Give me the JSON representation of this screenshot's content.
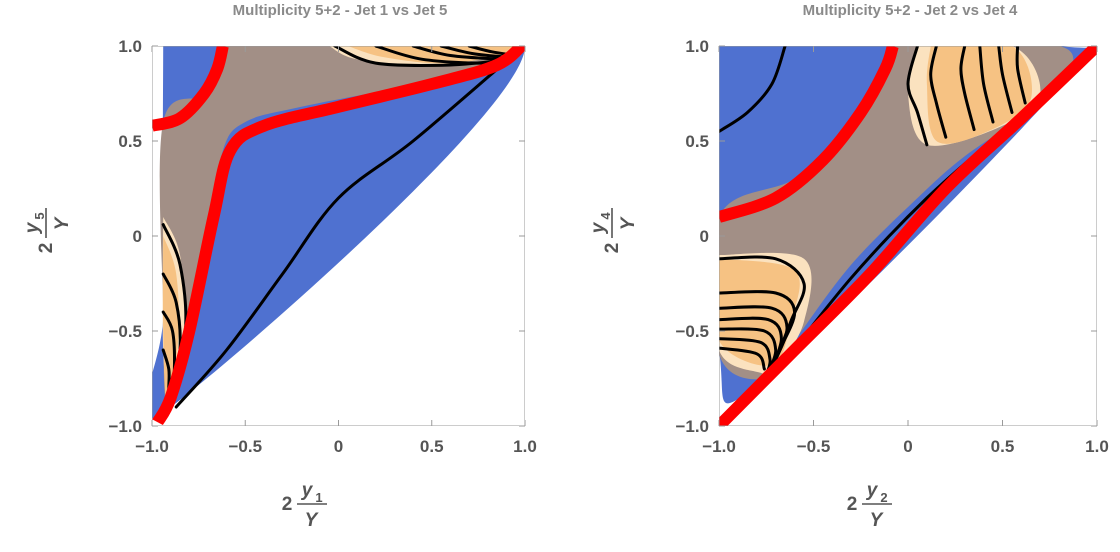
{
  "chart_data": [
    {
      "type": "contour",
      "title": "Multiplicity 5+2 - Jet 1 vs Jet 5",
      "xlabel": {
        "factor": "2",
        "numerator": "y",
        "subscript": "1",
        "denominator": "Y"
      },
      "ylabel": {
        "factor": "2",
        "numerator": "y",
        "subscript": "5",
        "denominator": "Y"
      },
      "xlim": [
        -1.0,
        1.0
      ],
      "ylim": [
        -1.0,
        1.0
      ],
      "xticks": [
        {
          "v": -1.0,
          "label": "−1.0"
        },
        {
          "v": -0.5,
          "label": "−0.5"
        },
        {
          "v": 0,
          "label": "0"
        },
        {
          "v": 0.5,
          "label": "0.5"
        },
        {
          "v": 1.0,
          "label": "1.0"
        }
      ],
      "yticks": [
        {
          "v": -1.0,
          "label": "−1.0"
        },
        {
          "v": -0.5,
          "label": "−0.5"
        },
        {
          "v": 0,
          "label": "0"
        },
        {
          "v": 0.5,
          "label": "0.5"
        },
        {
          "v": 1.0,
          "label": "1.0"
        }
      ],
      "colors": {
        "blue": "#4f71d0",
        "taupe": "#a28f86",
        "orange": "#f6c283",
        "light": "#fbe2bf",
        "red": "#ff0000",
        "contour": "#000000"
      },
      "regions": [
        {
          "fill": "blue",
          "points": [
            [
              -0.94,
              1.0
            ],
            [
              1.0,
              1.0
            ],
            [
              -0.9,
              -0.9
            ],
            [
              -0.94,
              -0.4
            ]
          ]
        },
        {
          "fill": "taupe",
          "points": [
            [
              -0.62,
              1.0
            ],
            [
              1.0,
              1.0
            ],
            [
              1.0,
              0.98
            ],
            [
              0.5,
              0.82
            ],
            [
              -0.2,
              0.68
            ],
            [
              -0.5,
              0.6
            ],
            [
              -0.62,
              0.45
            ],
            [
              -0.7,
              0.0
            ],
            [
              -0.82,
              -0.6
            ],
            [
              -0.92,
              -0.9
            ],
            [
              -0.94,
              -0.4
            ],
            [
              -0.94,
              0.6
            ],
            [
              -0.7,
              0.75
            ]
          ]
        },
        {
          "fill": "light",
          "points": [
            [
              -0.05,
              1.0
            ],
            [
              0.1,
              0.93
            ],
            [
              0.5,
              0.9
            ],
            [
              0.95,
              0.96
            ],
            [
              1.0,
              1.0
            ]
          ]
        },
        {
          "fill": "orange",
          "points": [
            [
              0.05,
              1.0
            ],
            [
              0.25,
              0.94
            ],
            [
              0.6,
              0.91
            ],
            [
              1.0,
              0.98
            ],
            [
              1.0,
              1.0
            ]
          ]
        },
        {
          "fill": "light",
          "points": [
            [
              -0.94,
              0.1
            ],
            [
              -0.85,
              -0.1
            ],
            [
              -0.83,
              -0.5
            ],
            [
              -0.9,
              -0.9
            ],
            [
              -0.94,
              -0.6
            ]
          ]
        },
        {
          "fill": "orange",
          "points": [
            [
              -0.94,
              0.0
            ],
            [
              -0.87,
              -0.2
            ],
            [
              -0.86,
              -0.55
            ],
            [
              -0.92,
              -0.88
            ],
            [
              -0.94,
              -0.5
            ]
          ]
        }
      ],
      "contours": [
        [
          [
            -0.94,
            0.06
          ],
          [
            -0.85,
            -0.15
          ],
          [
            -0.82,
            -0.5
          ],
          [
            -0.9,
            -0.88
          ]
        ],
        [
          [
            -0.94,
            -0.2
          ],
          [
            -0.87,
            -0.35
          ],
          [
            -0.85,
            -0.6
          ],
          [
            -0.9,
            -0.89
          ]
        ],
        [
          [
            -0.94,
            -0.4
          ],
          [
            -0.89,
            -0.5
          ],
          [
            -0.88,
            -0.7
          ],
          [
            -0.9,
            -0.89
          ]
        ],
        [
          [
            -0.94,
            -0.6
          ],
          [
            -0.91,
            -0.7
          ],
          [
            -0.91,
            -0.8
          ],
          [
            -0.91,
            -0.9
          ]
        ],
        [
          [
            -0.02,
            1.0
          ],
          [
            0.2,
            0.91
          ],
          [
            0.6,
            0.9
          ],
          [
            0.92,
            0.93
          ]
        ],
        [
          [
            0.2,
            1.0
          ],
          [
            0.45,
            0.93
          ],
          [
            0.8,
            0.91
          ],
          [
            0.95,
            0.94
          ]
        ],
        [
          [
            0.4,
            1.0
          ],
          [
            0.6,
            0.95
          ],
          [
            0.88,
            0.93
          ]
        ],
        [
          [
            0.55,
            1.0
          ],
          [
            0.72,
            0.96
          ],
          [
            0.92,
            0.94
          ]
        ],
        [
          [
            0.7,
            1.0
          ],
          [
            0.82,
            0.97
          ],
          [
            0.95,
            0.95
          ]
        ],
        [
          [
            -0.87,
            -0.9
          ],
          [
            -0.6,
            -0.6
          ],
          [
            -0.3,
            -0.2
          ],
          [
            0.0,
            0.2
          ],
          [
            0.4,
            0.5
          ],
          [
            0.9,
            0.92
          ]
        ]
      ],
      "red_curves": [
        [
          [
            -1.0,
            0.58
          ],
          [
            -0.85,
            0.62
          ],
          [
            -0.72,
            0.75
          ],
          [
            -0.65,
            0.88
          ],
          [
            -0.62,
            1.0
          ]
        ],
        [
          [
            -0.97,
            -0.98
          ],
          [
            -0.9,
            -0.85
          ],
          [
            -0.8,
            -0.5
          ],
          [
            -0.67,
            0.1
          ],
          [
            -0.58,
            0.45
          ],
          [
            -0.4,
            0.58
          ],
          [
            0.0,
            0.68
          ],
          [
            0.5,
            0.8
          ],
          [
            0.85,
            0.9
          ],
          [
            1.0,
            1.02
          ]
        ]
      ]
    },
    {
      "type": "contour",
      "title": "Multiplicity 5+2 - Jet 2 vs Jet 4",
      "xlabel": {
        "factor": "2",
        "numerator": "y",
        "subscript": "2",
        "denominator": "Y"
      },
      "ylabel": {
        "factor": "2",
        "numerator": "y",
        "subscript": "4",
        "denominator": "Y"
      },
      "xlim": [
        -1.0,
        1.0
      ],
      "ylim": [
        -1.0,
        1.0
      ],
      "xticks": [
        {
          "v": -1.0,
          "label": "−1.0"
        },
        {
          "v": -0.5,
          "label": "−0.5"
        },
        {
          "v": 0,
          "label": "0"
        },
        {
          "v": 0.5,
          "label": "0.5"
        },
        {
          "v": 1.0,
          "label": "1.0"
        }
      ],
      "yticks": [
        {
          "v": -1.0,
          "label": "−1.0"
        },
        {
          "v": -0.5,
          "label": "−0.5"
        },
        {
          "v": 0,
          "label": "0"
        },
        {
          "v": 0.5,
          "label": "0.5"
        },
        {
          "v": 1.0,
          "label": "1.0"
        }
      ],
      "colors": {
        "blue": "#4f71d0",
        "taupe": "#a28f86",
        "orange": "#f6c283",
        "light": "#fbe2bf",
        "red": "#ff0000",
        "contour": "#000000"
      },
      "regions": [
        {
          "fill": "blue",
          "points": [
            [
              -1.0,
              1.0
            ],
            [
              0.8,
              1.0
            ],
            [
              0.8,
              0.78
            ],
            [
              -0.75,
              -0.75
            ],
            [
              -1.0,
              -0.6
            ]
          ]
        },
        {
          "fill": "taupe",
          "points": [
            [
              -0.1,
              1.0
            ],
            [
              0.8,
              1.0
            ],
            [
              0.8,
              0.78
            ],
            [
              0.6,
              0.62
            ],
            [
              0.3,
              0.42
            ],
            [
              0.05,
              0.2
            ],
            [
              -0.3,
              -0.15
            ],
            [
              -0.6,
              -0.55
            ],
            [
              -0.75,
              -0.75
            ],
            [
              -1.0,
              -0.62
            ],
            [
              -1.0,
              0.1
            ],
            [
              -0.6,
              0.3
            ],
            [
              -0.3,
              0.55
            ],
            [
              -0.15,
              0.8
            ]
          ]
        },
        {
          "fill": "light",
          "points": [
            [
              0.05,
              1.0
            ],
            [
              0.55,
              1.0
            ],
            [
              0.7,
              0.75
            ],
            [
              0.5,
              0.58
            ],
            [
              0.1,
              0.48
            ],
            [
              0.0,
              0.75
            ]
          ]
        },
        {
          "fill": "orange",
          "points": [
            [
              0.12,
              1.0
            ],
            [
              0.55,
              1.0
            ],
            [
              0.65,
              0.72
            ],
            [
              0.42,
              0.55
            ],
            [
              0.15,
              0.5
            ],
            [
              0.1,
              0.8
            ]
          ]
        },
        {
          "fill": "light",
          "points": [
            [
              -1.0,
              -0.1
            ],
            [
              -0.55,
              -0.12
            ],
            [
              -0.55,
              -0.45
            ],
            [
              -0.7,
              -0.7
            ],
            [
              -0.78,
              -0.72
            ],
            [
              -1.0,
              -0.6
            ]
          ]
        },
        {
          "fill": "orange",
          "points": [
            [
              -1.0,
              -0.12
            ],
            [
              -0.6,
              -0.18
            ],
            [
              -0.62,
              -0.45
            ],
            [
              -0.72,
              -0.68
            ],
            [
              -1.0,
              -0.55
            ]
          ]
        }
      ],
      "contours": [
        [
          [
            -1.0,
            0.55
          ],
          [
            -0.85,
            0.65
          ],
          [
            -0.72,
            0.8
          ],
          [
            -0.65,
            1.0
          ]
        ],
        [
          [
            -1.0,
            -0.12
          ],
          [
            -0.7,
            -0.12
          ],
          [
            -0.55,
            -0.25
          ],
          [
            -0.62,
            -0.45
          ],
          [
            -0.72,
            -0.7
          ]
        ],
        [
          [
            -1.0,
            -0.3
          ],
          [
            -0.7,
            -0.3
          ],
          [
            -0.6,
            -0.4
          ],
          [
            -0.68,
            -0.6
          ],
          [
            -0.74,
            -0.72
          ]
        ],
        [
          [
            -1.0,
            -0.38
          ],
          [
            -0.72,
            -0.38
          ],
          [
            -0.64,
            -0.48
          ],
          [
            -0.7,
            -0.65
          ],
          [
            -0.75,
            -0.73
          ]
        ],
        [
          [
            -1.0,
            -0.44
          ],
          [
            -0.74,
            -0.44
          ],
          [
            -0.67,
            -0.54
          ],
          [
            -0.73,
            -0.72
          ]
        ],
        [
          [
            -1.0,
            -0.49
          ],
          [
            -0.76,
            -0.5
          ],
          [
            -0.7,
            -0.6
          ],
          [
            -0.74,
            -0.72
          ]
        ],
        [
          [
            -1.0,
            -0.54
          ],
          [
            -0.78,
            -0.56
          ],
          [
            -0.73,
            -0.65
          ],
          [
            -0.75,
            -0.73
          ]
        ],
        [
          [
            -1.0,
            -0.59
          ],
          [
            -0.8,
            -0.62
          ],
          [
            -0.76,
            -0.7
          ]
        ],
        [
          [
            0.1,
            0.48
          ],
          [
            0.05,
            0.65
          ],
          [
            0.0,
            0.8
          ],
          [
            0.05,
            1.0
          ]
        ],
        [
          [
            0.2,
            0.52
          ],
          [
            0.15,
            0.7
          ],
          [
            0.12,
            0.85
          ],
          [
            0.15,
            1.0
          ]
        ],
        [
          [
            0.35,
            0.56
          ],
          [
            0.3,
            0.75
          ],
          [
            0.28,
            0.88
          ],
          [
            0.3,
            1.0
          ]
        ],
        [
          [
            0.45,
            0.6
          ],
          [
            0.4,
            0.8
          ],
          [
            0.38,
            1.0
          ]
        ],
        [
          [
            0.55,
            0.65
          ],
          [
            0.5,
            0.85
          ],
          [
            0.48,
            1.0
          ]
        ],
        [
          [
            0.62,
            0.7
          ],
          [
            0.58,
            0.88
          ],
          [
            0.58,
            1.0
          ]
        ],
        [
          [
            -0.7,
            -0.72
          ],
          [
            -0.3,
            -0.22
          ],
          [
            0.1,
            0.2
          ],
          [
            0.5,
            0.55
          ],
          [
            0.78,
            0.78
          ]
        ]
      ],
      "red_curves": [
        [
          [
            -1.0,
            0.1
          ],
          [
            -0.7,
            0.2
          ],
          [
            -0.45,
            0.4
          ],
          [
            -0.25,
            0.65
          ],
          [
            -0.12,
            0.88
          ],
          [
            -0.08,
            1.0
          ]
        ],
        [
          [
            -1.0,
            -1.0
          ],
          [
            -0.6,
            -0.6
          ],
          [
            -0.2,
            -0.2
          ],
          [
            0.2,
            0.25
          ],
          [
            0.6,
            0.62
          ],
          [
            1.0,
            1.0
          ]
        ]
      ]
    }
  ]
}
